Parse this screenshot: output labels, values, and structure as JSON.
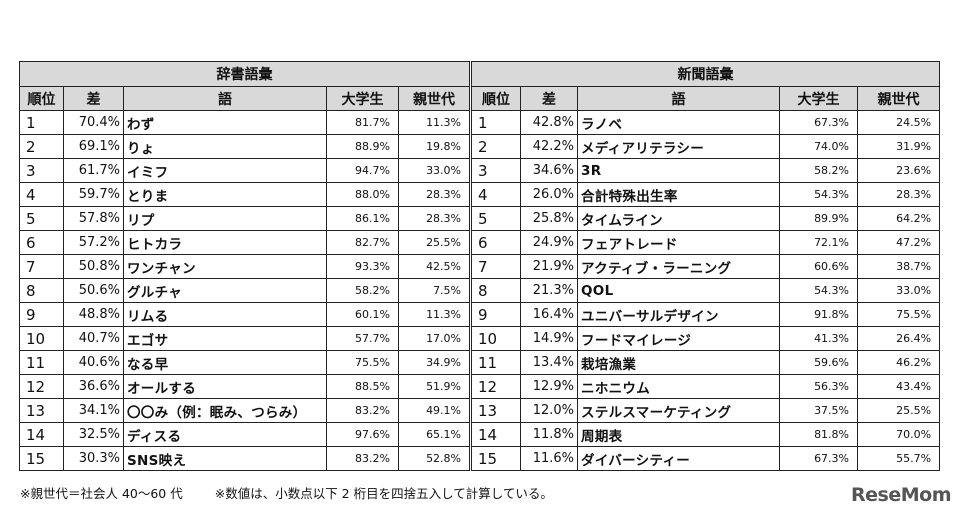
{
  "left_section": "辞書語彙",
  "right_section": "新聞語彙",
  "headers": {
    "rank": "順位",
    "diff": "差",
    "word": "語",
    "student": "大学生",
    "parent": "親世代"
  },
  "dictionary": [
    {
      "rank": "1",
      "diff": "70.4%",
      "word": "わず",
      "student": "81.7%",
      "parent": "11.3%"
    },
    {
      "rank": "2",
      "diff": "69.1%",
      "word": "りょ",
      "student": "88.9%",
      "parent": "19.8%"
    },
    {
      "rank": "3",
      "diff": "61.7%",
      "word": "イミフ",
      "student": "94.7%",
      "parent": "33.0%"
    },
    {
      "rank": "4",
      "diff": "59.7%",
      "word": "とりま",
      "student": "88.0%",
      "parent": "28.3%"
    },
    {
      "rank": "5",
      "diff": "57.8%",
      "word": "リプ",
      "student": "86.1%",
      "parent": "28.3%"
    },
    {
      "rank": "6",
      "diff": "57.2%",
      "word": "ヒトカラ",
      "student": "82.7%",
      "parent": "25.5%"
    },
    {
      "rank": "7",
      "diff": "50.8%",
      "word": "ワンチャン",
      "student": "93.3%",
      "parent": "42.5%"
    },
    {
      "rank": "8",
      "diff": "50.6%",
      "word": "グルチャ",
      "student": "58.2%",
      "parent": "7.5%"
    },
    {
      "rank": "9",
      "diff": "48.8%",
      "word": "リムる",
      "student": "60.1%",
      "parent": "11.3%"
    },
    {
      "rank": "10",
      "diff": "40.7%",
      "word": "エゴサ",
      "student": "57.7%",
      "parent": "17.0%"
    },
    {
      "rank": "11",
      "diff": "40.6%",
      "word": "なる早",
      "student": "75.5%",
      "parent": "34.9%"
    },
    {
      "rank": "12",
      "diff": "36.6%",
      "word": "オールする",
      "student": "88.5%",
      "parent": "51.9%"
    },
    {
      "rank": "13",
      "diff": "34.1%",
      "word": "〇〇み（例：眠み、つらみ）",
      "student": "83.2%",
      "parent": "49.1%"
    },
    {
      "rank": "14",
      "diff": "32.5%",
      "word": "ディスる",
      "student": "97.6%",
      "parent": "65.1%"
    },
    {
      "rank": "15",
      "diff": "30.3%",
      "word": "SNS映え",
      "student": "83.2%",
      "parent": "52.8%"
    }
  ],
  "newspaper": [
    {
      "rank": "1",
      "diff": "42.8%",
      "word": "ラノベ",
      "student": "67.3%",
      "parent": "24.5%"
    },
    {
      "rank": "2",
      "diff": "42.2%",
      "word": "メディアリテラシー",
      "student": "74.0%",
      "parent": "31.9%"
    },
    {
      "rank": "3",
      "diff": "34.6%",
      "word": "3R",
      "student": "58.2%",
      "parent": "23.6%"
    },
    {
      "rank": "4",
      "diff": "26.0%",
      "word": "合計特殊出生率",
      "student": "54.3%",
      "parent": "28.3%"
    },
    {
      "rank": "5",
      "diff": "25.8%",
      "word": "タイムライン",
      "student": "89.9%",
      "parent": "64.2%"
    },
    {
      "rank": "6",
      "diff": "24.9%",
      "word": "フェアトレード",
      "student": "72.1%",
      "parent": "47.2%"
    },
    {
      "rank": "7",
      "diff": "21.9%",
      "word": "アクティブ・ラーニング",
      "student": "60.6%",
      "parent": "38.7%"
    },
    {
      "rank": "8",
      "diff": "21.3%",
      "word": "QOL",
      "student": "54.3%",
      "parent": "33.0%"
    },
    {
      "rank": "9",
      "diff": "16.4%",
      "word": "ユニバーサルデザイン",
      "student": "91.8%",
      "parent": "75.5%"
    },
    {
      "rank": "10",
      "diff": "14.9%",
      "word": "フードマイレージ",
      "student": "41.3%",
      "parent": "26.4%"
    },
    {
      "rank": "11",
      "diff": "13.4%",
      "word": "栽培漁業",
      "student": "59.6%",
      "parent": "46.2%"
    },
    {
      "rank": "12",
      "diff": "12.9%",
      "word": "ニホニウム",
      "student": "56.3%",
      "parent": "43.4%"
    },
    {
      "rank": "13",
      "diff": "12.0%",
      "word": "ステルスマーケティング",
      "student": "37.5%",
      "parent": "25.5%"
    },
    {
      "rank": "14",
      "diff": "11.8%",
      "word": "周期表",
      "student": "81.8%",
      "parent": "70.0%"
    },
    {
      "rank": "15",
      "diff": "11.6%",
      "word": "ダイバーシティー",
      "student": "67.3%",
      "parent": "55.7%"
    }
  ],
  "notes": {
    "note1": "※親世代＝社会人 40～60 代",
    "note2": "※数値は、小数点以下 2 桁目を四捨五入して計算している。"
  },
  "brand": "ReseMom"
}
